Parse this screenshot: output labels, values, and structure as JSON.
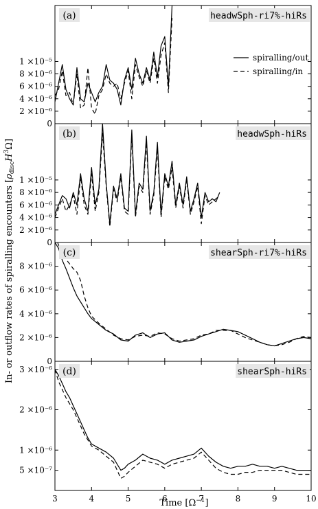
{
  "figure": {
    "ylabel": "In- or outflow rates of spiralling encounters [ρ_disc H³Ω]",
    "ylabel_plain": "In- or outflow rates of spiralling encounters [",
    "ylabel_rho": "ρ",
    "ylabel_sub": "disc",
    "ylabel_H": "H",
    "ylabel_sup": "3",
    "ylabel_omega": "Ω]",
    "xlabel_main": "Time [Ω",
    "xlabel_sup": "−1",
    "xlabel_end": "]",
    "legend": [
      "spiralling/out",
      "spiralling/in"
    ]
  },
  "chart_data": [
    {
      "type": "line",
      "panel_letter": "(a)",
      "title": "headwSph-ri7%-hiRs",
      "xlim": [
        3,
        10
      ],
      "ylim": [
        0,
        1.9e-05
      ],
      "yticks": [
        0,
        2e-06,
        4e-06,
        6e-06,
        8e-06,
        1e-05
      ],
      "ytick_labels": [
        "0",
        "2 ×10⁻⁶",
        "4 ×10⁻⁶",
        "6 ×10⁻⁶",
        "8 ×10⁻⁶",
        "1 ×10⁻⁵"
      ],
      "legend": "right",
      "series": [
        {
          "name": "spiralling/out",
          "style": "solid",
          "x": [
            3.0,
            3.1,
            3.2,
            3.3,
            3.4,
            3.5,
            3.6,
            3.7,
            3.8,
            3.9,
            4.0,
            4.1,
            4.2,
            4.3,
            4.4,
            4.5,
            4.6,
            4.7,
            4.8,
            4.9,
            5.0,
            5.1,
            5.2,
            5.3,
            5.4,
            5.5,
            5.6,
            5.7,
            5.8,
            5.9,
            6.0,
            6.1,
            6.2
          ],
          "y": [
            3.5e-06,
            6.5e-06,
            9.5e-06,
            5.5e-06,
            4e-06,
            3e-06,
            9e-06,
            4e-06,
            3.5e-06,
            6.5e-06,
            5e-06,
            3.5e-06,
            5e-06,
            6e-06,
            9.5e-06,
            7e-06,
            6.5e-06,
            5.5e-06,
            3e-06,
            7e-06,
            9e-06,
            5.5e-06,
            1.05e-05,
            8e-06,
            6.5e-06,
            9e-06,
            7e-06,
            1.15e-05,
            7.5e-06,
            1.25e-05,
            1.4e-05,
            6e-06,
            1.9e-05
          ]
        },
        {
          "name": "spiralling/in",
          "style": "dashed",
          "x": [
            3.0,
            3.1,
            3.2,
            3.3,
            3.4,
            3.5,
            3.6,
            3.7,
            3.8,
            3.9,
            4.0,
            4.1,
            4.2,
            4.3,
            4.4,
            4.5,
            4.6,
            4.7,
            4.8,
            4.9,
            5.0,
            5.1,
            5.2,
            5.3,
            5.4,
            5.5,
            5.6,
            5.7,
            5.8,
            5.9,
            6.0,
            6.1,
            6.2
          ],
          "y": [
            4.5e-06,
            5.5e-06,
            8.5e-06,
            4.5e-06,
            5e-06,
            3e-06,
            8e-06,
            2.5e-06,
            3e-06,
            9e-06,
            2.5e-06,
            1.5e-06,
            4.5e-06,
            5.5e-06,
            8e-06,
            6.5e-06,
            6e-06,
            6.5e-06,
            4e-06,
            6.5e-06,
            8.5e-06,
            4e-06,
            9.5e-06,
            7.5e-06,
            6e-06,
            8.5e-06,
            6.5e-06,
            1.05e-05,
            6.5e-06,
            1.1e-05,
            1.3e-05,
            5e-06,
            1.7e-05
          ]
        }
      ]
    },
    {
      "type": "line",
      "panel_letter": "(b)",
      "title": "headwSph-hiRs",
      "xlim": [
        3,
        10
      ],
      "ylim": [
        0,
        1.9e-05
      ],
      "yticks": [
        0,
        2e-06,
        4e-06,
        6e-06,
        8e-06,
        1e-05
      ],
      "ytick_labels": [
        "0",
        "2 ×10⁻⁶",
        "4 ×10⁻⁶",
        "6 ×10⁻⁶",
        "8 ×10⁻⁶",
        "1 ×10⁻⁵"
      ],
      "series": [
        {
          "name": "spiralling/out",
          "style": "solid",
          "x": [
            3.0,
            3.1,
            3.2,
            3.3,
            3.4,
            3.5,
            3.6,
            3.7,
            3.8,
            3.9,
            4.0,
            4.1,
            4.2,
            4.3,
            4.4,
            4.5,
            4.6,
            4.7,
            4.8,
            4.9,
            5.0,
            5.1,
            5.2,
            5.3,
            5.4,
            5.5,
            5.6,
            5.7,
            5.8,
            5.9,
            6.0,
            6.1,
            6.2,
            6.3,
            6.4,
            6.5,
            6.6,
            6.7,
            6.8,
            6.9,
            7.0,
            7.1,
            7.2,
            7.3,
            7.4,
            7.5
          ],
          "y": [
            4.5e-06,
            6e-06,
            7.5e-06,
            7e-06,
            5.5e-06,
            8e-06,
            6e-06,
            1.1e-05,
            7e-06,
            5e-06,
            1.2e-05,
            6e-06,
            8.5e-06,
            1.9e-05,
            9.5e-06,
            3e-06,
            9e-06,
            7e-06,
            1.1e-05,
            5.5e-06,
            5e-06,
            1.8e-05,
            4.5e-06,
            9.5e-06,
            8.5e-06,
            1.7e-05,
            5e-06,
            8e-06,
            1.6e-05,
            4.5e-06,
            1.1e-05,
            9e-06,
            1.3e-05,
            6e-06,
            9.5e-06,
            6e-06,
            1.05e-05,
            5e-06,
            7e-06,
            9.5e-06,
            4e-06,
            8e-06,
            6.5e-06,
            7e-06,
            6.5e-06,
            8e-06
          ]
        },
        {
          "name": "spiralling/in",
          "style": "dashed",
          "x": [
            3.0,
            3.1,
            3.2,
            3.3,
            3.4,
            3.5,
            3.6,
            3.7,
            3.8,
            3.9,
            4.0,
            4.1,
            4.2,
            4.3,
            4.4,
            4.5,
            4.6,
            4.7,
            4.8,
            4.9,
            5.0,
            5.1,
            5.2,
            5.3,
            5.4,
            5.5,
            5.6,
            5.7,
            5.8,
            5.9,
            6.0,
            6.1,
            6.2,
            6.3,
            6.4,
            6.5,
            6.6,
            6.7,
            6.8,
            6.9,
            7.0,
            7.1,
            7.2,
            7.3,
            7.4,
            7.5
          ],
          "y": [
            4e-06,
            5.5e-06,
            7e-06,
            5e-06,
            6e-06,
            7.5e-06,
            4.5e-06,
            1.05e-05,
            6e-06,
            4.5e-06,
            1.1e-05,
            5e-06,
            8e-06,
            1.75e-05,
            9e-06,
            2.5e-06,
            8.5e-06,
            6.5e-06,
            1.05e-05,
            5e-06,
            4.5e-06,
            1.7e-05,
            4e-06,
            9e-06,
            8e-06,
            1.6e-05,
            4.5e-06,
            7.5e-06,
            1.5e-05,
            4e-06,
            1.05e-05,
            8.5e-06,
            1.2e-05,
            5.5e-06,
            9e-06,
            5.5e-06,
            1e-05,
            4.5e-06,
            6.5e-06,
            9e-06,
            3e-06,
            7.5e-06,
            6e-06,
            6.5e-06,
            7e-06,
            7.5e-06
          ]
        }
      ]
    },
    {
      "type": "line",
      "panel_letter": "(c)",
      "title": "shearSph-ri7%-hiRs",
      "xlim": [
        3,
        10
      ],
      "ylim": [
        0,
        1e-05
      ],
      "yticks": [
        0,
        2e-06,
        4e-06,
        6e-06,
        8e-06
      ],
      "ytick_labels": [
        "0",
        "2 ×10⁻⁶",
        "4 ×10⁻⁶",
        "6 ×10⁻⁶",
        "8 ×10⁻⁶"
      ],
      "series": [
        {
          "name": "spiralling/out",
          "style": "solid",
          "x": [
            3.0,
            3.1,
            3.2,
            3.3,
            3.4,
            3.5,
            3.6,
            3.7,
            3.8,
            3.9,
            4.0,
            4.2,
            4.4,
            4.6,
            4.8,
            5.0,
            5.2,
            5.4,
            5.6,
            5.8,
            6.0,
            6.2,
            6.4,
            6.6,
            6.8,
            7.0,
            7.2,
            7.4,
            7.6,
            7.8,
            8.0,
            8.2,
            8.4,
            8.6,
            8.8,
            9.0,
            9.2,
            9.4,
            9.6,
            9.8,
            10.0
          ],
          "y": [
            1e-05,
            9.5e-06,
            8.5e-06,
            7.8e-06,
            7e-06,
            6.2e-06,
            5.5e-06,
            5e-06,
            4.5e-06,
            4e-06,
            3.6e-06,
            3.1e-06,
            2.6e-06,
            2.3e-06,
            1.8e-06,
            1.7e-06,
            2.2e-06,
            2.4e-06,
            2e-06,
            2.3e-06,
            2.4e-06,
            1.8e-06,
            1.6e-06,
            1.7e-06,
            1.8e-06,
            2.1e-06,
            2.3e-06,
            2.5e-06,
            2.7e-06,
            2.6e-06,
            2.5e-06,
            2.2e-06,
            1.9e-06,
            1.6e-06,
            1.4e-06,
            1.3e-06,
            1.5e-06,
            1.7e-06,
            1.9e-06,
            2e-06,
            1.9e-06
          ]
        },
        {
          "name": "spiralling/in",
          "style": "dashed",
          "x": [
            3.0,
            3.1,
            3.2,
            3.3,
            3.4,
            3.5,
            3.6,
            3.7,
            3.8,
            3.9,
            4.0,
            4.2,
            4.4,
            4.6,
            4.8,
            5.0,
            5.2,
            5.4,
            5.6,
            5.8,
            6.0,
            6.2,
            6.4,
            6.6,
            6.8,
            7.0,
            7.2,
            7.4,
            7.6,
            7.8,
            8.0,
            8.2,
            8.4,
            8.6,
            8.8,
            9.0,
            9.2,
            9.4,
            9.6,
            9.8,
            10.0
          ],
          "y": [
            1.05e-05,
            9.8e-06,
            9.2e-06,
            8.6e-06,
            8.2e-06,
            7.8e-06,
            7.5e-06,
            6.8e-06,
            5.5e-06,
            4.5e-06,
            3.8e-06,
            3.2e-06,
            2.7e-06,
            2.2e-06,
            1.9e-06,
            1.8e-06,
            2.1e-06,
            2.2e-06,
            2.1e-06,
            2.4e-06,
            2.3e-06,
            1.9e-06,
            1.7e-06,
            1.8e-06,
            1.9e-06,
            2.2e-06,
            2.3e-06,
            2.6e-06,
            2.6e-06,
            2.6e-06,
            2.3e-06,
            2e-06,
            1.8e-06,
            1.6e-06,
            1.4e-06,
            1.3e-06,
            1.4e-06,
            1.6e-06,
            1.9e-06,
            2.1e-06,
            2e-06
          ]
        }
      ]
    },
    {
      "type": "line",
      "panel_letter": "(d)",
      "title": "shearSph-hiRs",
      "xlim": [
        3,
        10
      ],
      "ylim": [
        0,
        3.2e-06
      ],
      "yticks": [
        5e-07,
        1e-06,
        2e-06,
        3e-06
      ],
      "ytick_labels": [
        "5 ×10⁻⁷",
        "1 ×10⁻⁶",
        "2 ×10⁻⁶",
        "3 ×10⁻⁶"
      ],
      "xticks": [
        3,
        4,
        5,
        6,
        7,
        8,
        9,
        10
      ],
      "xtick_labels": [
        "3",
        "4",
        "5",
        "6",
        "7",
        "8",
        "9",
        "10"
      ],
      "series": [
        {
          "name": "spiralling/out",
          "style": "solid",
          "x": [
            3.0,
            3.1,
            3.2,
            3.3,
            3.4,
            3.5,
            3.6,
            3.7,
            3.8,
            3.9,
            4.0,
            4.2,
            4.4,
            4.6,
            4.8,
            4.9,
            5.0,
            5.2,
            5.4,
            5.6,
            5.8,
            6.0,
            6.2,
            6.4,
            6.6,
            6.8,
            7.0,
            7.2,
            7.4,
            7.6,
            7.8,
            8.0,
            8.2,
            8.4,
            8.6,
            8.8,
            9.0,
            9.2,
            9.4,
            9.6,
            9.8,
            10.0
          ],
          "y": [
            3e-06,
            2.85e-06,
            2.65e-06,
            2.45e-06,
            2.3e-06,
            2.1e-06,
            1.9e-06,
            1.7e-06,
            1.5e-06,
            1.3e-06,
            1.15e-06,
            1.05e-06,
            9.5e-07,
            8e-07,
            5e-07,
            5.5e-07,
            6.5e-07,
            7.5e-07,
            9e-07,
            8e-07,
            7.5e-07,
            6.5e-07,
            7.5e-07,
            8e-07,
            8.5e-07,
            9e-07,
            1.05e-06,
            8.5e-07,
            7e-07,
            6e-07,
            5.5e-07,
            6e-07,
            6e-07,
            6.5e-07,
            6e-07,
            6e-07,
            5.5e-07,
            6e-07,
            5.5e-07,
            5e-07,
            5e-07,
            5e-07
          ]
        },
        {
          "name": "spiralling/in",
          "style": "dashed",
          "x": [
            3.0,
            3.1,
            3.2,
            3.3,
            3.4,
            3.5,
            3.6,
            3.7,
            3.8,
            3.9,
            4.0,
            4.2,
            4.4,
            4.6,
            4.8,
            4.9,
            5.0,
            5.2,
            5.4,
            5.6,
            5.8,
            6.0,
            6.2,
            6.4,
            6.6,
            6.8,
            7.0,
            7.2,
            7.4,
            7.6,
            7.8,
            8.0,
            8.2,
            8.4,
            8.6,
            8.8,
            9.0,
            9.2,
            9.4,
            9.6,
            9.8,
            10.0
          ],
          "y": [
            3e-06,
            2.7e-06,
            2.5e-06,
            2.3e-06,
            2.15e-06,
            2e-06,
            1.8e-06,
            1.6e-06,
            1.4e-06,
            1.25e-06,
            1.1e-06,
            1e-06,
            8.5e-07,
            7e-07,
            3e-07,
            3.5e-07,
            4.5e-07,
            6e-07,
            7.5e-07,
            7e-07,
            6.5e-07,
            5.5e-07,
            6.5e-07,
            7e-07,
            7.5e-07,
            8e-07,
            9.5e-07,
            7.5e-07,
            5.5e-07,
            4.5e-07,
            4e-07,
            4e-07,
            4.5e-07,
            4.5e-07,
            5e-07,
            5e-07,
            5e-07,
            5e-07,
            4.5e-07,
            4e-07,
            4e-07,
            4e-07
          ]
        }
      ]
    }
  ]
}
